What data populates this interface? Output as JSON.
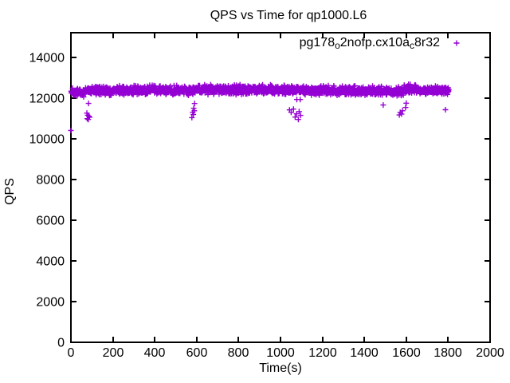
{
  "chart": {
    "title": "QPS vs Time for qp1000.L6",
    "x_axis": {
      "label": "Time(s)",
      "min": 0,
      "max": 2000,
      "tick_step": 200
    },
    "y_axis": {
      "label": "QPS",
      "min": 0,
      "max": 15200,
      "tick_step": 2000
    },
    "legend": {
      "series_name_raw": "pg178_o2nofp.cx10a_c8r32",
      "label_segments": [
        [
          "text",
          "pg178"
        ],
        [
          "sub",
          "o"
        ],
        [
          "text",
          "2nofp.cx10a"
        ],
        [
          "sub",
          "c"
        ],
        [
          "text",
          "8r32"
        ]
      ],
      "marker": "plus",
      "position": "top-right-inside"
    },
    "colors": {
      "series": "#9400D3",
      "axis": "#000000",
      "background": "#ffffff"
    }
  },
  "chart_data": {
    "type": "scatter",
    "title": "QPS vs Time for qp1000.L6",
    "xlabel": "Time(s)",
    "ylabel": "QPS",
    "xlim": [
      0,
      2000
    ],
    "ylim": [
      0,
      15200
    ],
    "x_ticks": [
      0,
      200,
      400,
      600,
      800,
      1000,
      1200,
      1400,
      1600,
      1800,
      2000
    ],
    "y_ticks": [
      0,
      2000,
      4000,
      6000,
      8000,
      10000,
      12000,
      14000
    ],
    "grid": false,
    "legend_position": "top-right-inside",
    "series": [
      {
        "name": "pg178_o2nofp.cx10a_c8r32",
        "marker": "plus",
        "color": "#9400D3",
        "sample_interval_s": 1,
        "description": "Dense band of ~1800 one-per-second samples holding steady near 12300-12400 QPS from t=0 to t=1803, with brief dip clusters near t=0, t=80, t=590, t=1040-1100, t=1490, t=1570-1600 and t=1790.",
        "band_segments": [
          {
            "t_start": 1,
            "t_end": 69,
            "qps_mean": 12280,
            "qps_spread": 240
          },
          {
            "t_start": 70,
            "t_end": 589,
            "qps_mean": 12370,
            "qps_spread": 260
          },
          {
            "t_start": 590,
            "t_end": 1059,
            "qps_mean": 12400,
            "qps_spread": 260
          },
          {
            "t_start": 1060,
            "t_end": 1489,
            "qps_mean": 12360,
            "qps_spread": 260
          },
          {
            "t_start": 1490,
            "t_end": 1589,
            "qps_mean": 12330,
            "qps_spread": 250
          },
          {
            "t_start": 1590,
            "t_end": 1664,
            "qps_mean": 12450,
            "qps_spread": 260
          },
          {
            "t_start": 1665,
            "t_end": 1803,
            "qps_mean": 12360,
            "qps_spread": 230
          }
        ],
        "outliers": [
          [
            0,
            10400
          ],
          [
            76,
            11250
          ],
          [
            78,
            10980
          ],
          [
            80,
            11150
          ],
          [
            83,
            10940
          ],
          [
            84,
            11730
          ],
          [
            86,
            11100
          ],
          [
            89,
            11050
          ],
          [
            577,
            11030
          ],
          [
            581,
            11290
          ],
          [
            584,
            11180
          ],
          [
            586,
            11490
          ],
          [
            589,
            11370
          ],
          [
            590,
            11725
          ],
          [
            1043,
            11410
          ],
          [
            1051,
            11290
          ],
          [
            1062,
            11450
          ],
          [
            1070,
            11060
          ],
          [
            1077,
            11220
          ],
          [
            1078,
            11920
          ],
          [
            1085,
            10940
          ],
          [
            1089,
            11330
          ],
          [
            1094,
            11920
          ],
          [
            1096,
            11140
          ],
          [
            1490,
            11650
          ],
          [
            1567,
            11160
          ],
          [
            1571,
            11290
          ],
          [
            1578,
            11210
          ],
          [
            1582,
            11370
          ],
          [
            1597,
            11530
          ],
          [
            1600,
            11740
          ],
          [
            1787,
            11420
          ]
        ]
      }
    ]
  }
}
